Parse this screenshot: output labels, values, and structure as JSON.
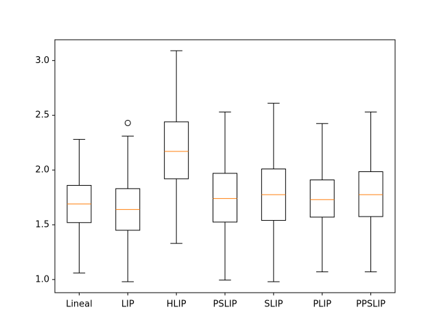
{
  "chart_data": {
    "type": "box",
    "title": "",
    "xlabel": "",
    "ylabel": "",
    "ylim": [
      0.88,
      3.19
    ],
    "yticks": [
      1.0,
      1.5,
      2.0,
      2.5,
      3.0
    ],
    "ytick_labels": [
      "1.0",
      "1.5",
      "2.0",
      "2.5",
      "3.0"
    ],
    "categories": [
      "Lineal",
      "LIP",
      "HLIP",
      "PSLIP",
      "SLIP",
      "PLIP",
      "PPSLIP"
    ],
    "boxes": [
      {
        "whislo": 1.06,
        "q1": 1.52,
        "med": 1.69,
        "q3": 1.86,
        "whishi": 2.28,
        "fliers": []
      },
      {
        "whislo": 0.98,
        "q1": 1.45,
        "med": 1.64,
        "q3": 1.83,
        "whishi": 2.31,
        "fliers": [
          2.43
        ]
      },
      {
        "whislo": 1.33,
        "q1": 1.92,
        "med": 2.17,
        "q3": 2.44,
        "whishi": 3.09,
        "fliers": []
      },
      {
        "whislo": 0.995,
        "q1": 1.525,
        "med": 1.74,
        "q3": 1.97,
        "whishi": 2.53,
        "fliers": []
      },
      {
        "whislo": 0.98,
        "q1": 1.54,
        "med": 1.775,
        "q3": 2.01,
        "whishi": 2.61,
        "fliers": []
      },
      {
        "whislo": 1.07,
        "q1": 1.57,
        "med": 1.73,
        "q3": 1.91,
        "whishi": 2.425,
        "fliers": []
      },
      {
        "whislo": 1.07,
        "q1": 1.575,
        "med": 1.775,
        "q3": 1.985,
        "whishi": 2.53,
        "fliers": []
      }
    ],
    "grid": false,
    "colors": {
      "box": "#000000",
      "median": "#ff7f0e",
      "background": "#ffffff"
    }
  }
}
